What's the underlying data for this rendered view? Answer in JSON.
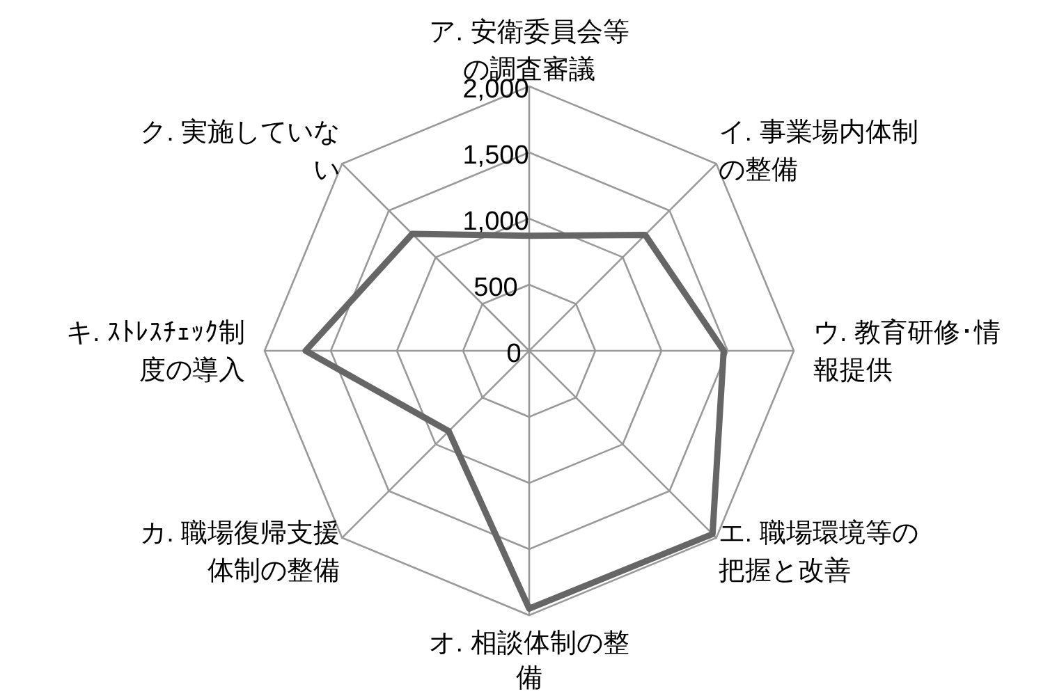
{
  "chart_data": {
    "type": "radar",
    "categories": [
      "ア. 安衛委員会等の調査審議",
      "イ. 事業場内体制の整備",
      "ウ. 教育研修･情報提供",
      "エ. 職場環境等の把握と改善",
      "オ. 相談体制の整備",
      "カ. 職場復帰支援体制の整備",
      "キ. ｽﾄﾚｽﾁｪｯｸ制度の導入",
      "ク. 実施していない"
    ],
    "series": [
      {
        "color": "#666666",
        "values": [
          870,
          1240,
          1470,
          1960,
          1950,
          860,
          1690,
          1250
        ]
      }
    ],
    "ylim": [
      0,
      2000
    ],
    "yticks": [
      {
        "value": 0,
        "label": "0"
      },
      {
        "value": 500,
        "label": "500"
      },
      {
        "value": 1000,
        "label": "1,000"
      },
      {
        "value": 1500,
        "label": "1,500"
      },
      {
        "value": 2000,
        "label": "2,000"
      }
    ],
    "grid": true,
    "marker": "none",
    "line_style": "solid"
  }
}
